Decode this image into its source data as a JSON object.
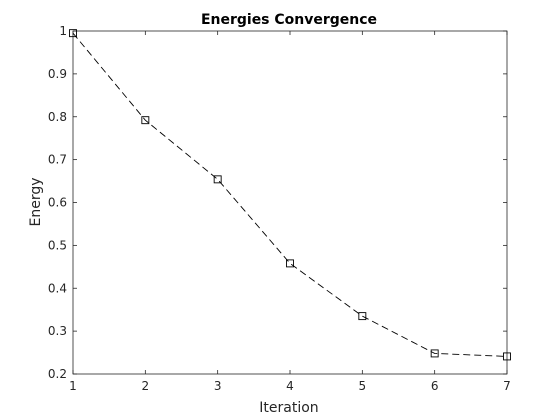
{
  "chart_data": {
    "type": "line",
    "title": "Energies Convergence",
    "xlabel": "Iteration",
    "ylabel": "Energy",
    "xlim": [
      1,
      7
    ],
    "ylim": [
      0.2,
      1
    ],
    "xticks": [
      1,
      2,
      3,
      4,
      5,
      6,
      7
    ],
    "yticks": [
      0.2,
      0.3,
      0.4,
      0.5,
      0.6,
      0.7,
      0.8,
      0.9,
      1
    ],
    "xtick_labels": [
      "1",
      "2",
      "3",
      "4",
      "5",
      "6",
      "7"
    ],
    "ytick_labels": [
      "0.2",
      "0.3",
      "0.4",
      "0.5",
      "0.6",
      "0.7",
      "0.8",
      "0.9",
      "1"
    ],
    "grid": false,
    "series": [
      {
        "x": [
          1,
          2,
          3,
          4,
          5,
          6,
          7
        ],
        "values": [
          0.995,
          0.792,
          0.654,
          0.458,
          0.335,
          0.248,
          0.241
        ],
        "line_style": "dashed",
        "marker": "square",
        "color": "#000000"
      }
    ]
  }
}
